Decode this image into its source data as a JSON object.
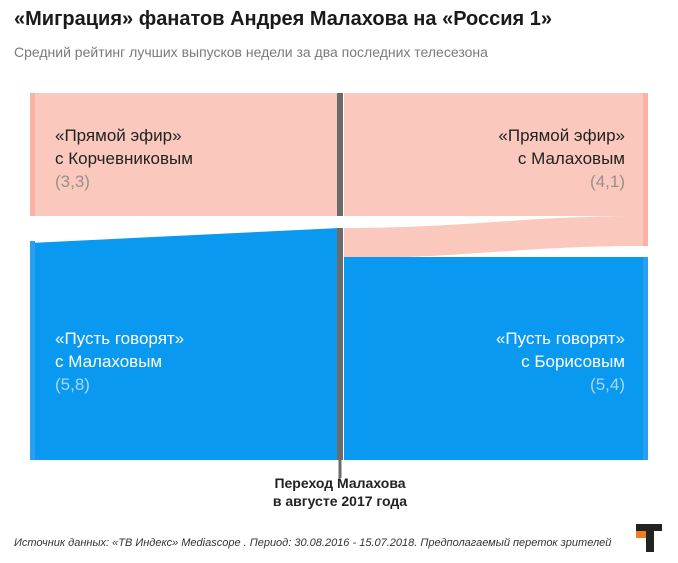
{
  "title": "«Миграция» фанатов Андрея Малахова на «Россия 1»",
  "subtitle": "Средний рейтинг лучших выпусков недели за два последних телесезона",
  "colors": {
    "pink": "#fbc8bd",
    "pink_edge": "#f8b3a6",
    "blue": "#0a99f0",
    "blue_edge": "#2a9ff2",
    "divider": "#6b6b6b",
    "logo_orange": "#f07c1e",
    "logo_dark": "#222222"
  },
  "chart_data": {
    "type": "sankey",
    "left": [
      {
        "name_line1": "«Прямой эфир»",
        "name_line2": "с Корчевниковым",
        "value_label": "(3,3)",
        "value": 3.3
      },
      {
        "name_line1": "«Пусть говорят»",
        "name_line2": "с Малаховым",
        "value_label": "(5,8)",
        "value": 5.8
      }
    ],
    "right": [
      {
        "name_line1": "«Прямой эфир»",
        "name_line2": "с Малаховым",
        "value_label": "(4,1)",
        "value": 4.1
      },
      {
        "name_line1": "«Пусть говорят»",
        "name_line2": "с Борисовым",
        "value_label": "(5,4)",
        "value": 5.4
      }
    ],
    "divider_label_line1": "Переход Малахова",
    "divider_label_line2": "в августе 2017 года"
  },
  "source": "Источник данных: «ТВ Индекс» Mediascope . Период: 30.08.2016 - 15.07.2018. Предполагаемый переток зрителей",
  "logo": {
    "icon": "t-logo"
  }
}
